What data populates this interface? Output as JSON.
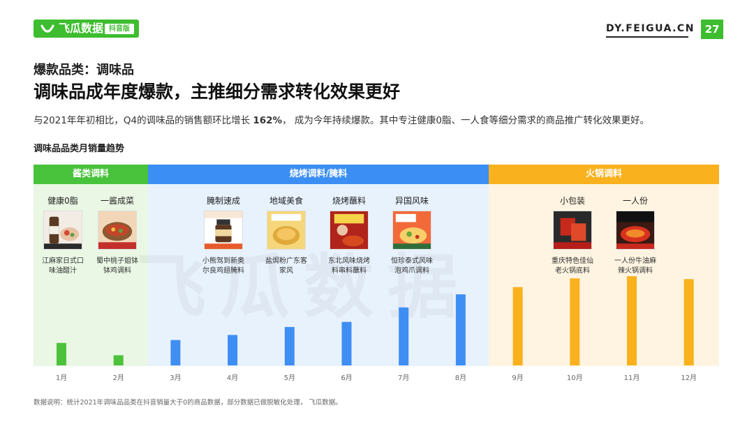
{
  "header": {
    "logo_text": "飞瓜数据",
    "logo_badge": "抖音版",
    "site": "DY.FEIGUA.CN",
    "page_number": "27"
  },
  "section_title": "爆款品类：调味品",
  "headline": "调味品成年度爆款，主推细分需求转化效果更好",
  "description": {
    "pre": "与2021年年初相比，Q4的调味品的销售额环比增长 ",
    "highlight": "162%",
    "post": "， 成为今年持续爆款。其中专注健康0脂、一人食等细分需求的商品推广转化效果更好。"
  },
  "chart_title": "调味品品类月销量趋势",
  "watermark": "飞瓜数据",
  "groups": [
    {
      "label": "酱类调料",
      "color": "#49c23c",
      "bg": "#e9f7e4",
      "bar_color": "#4cc23b"
    },
    {
      "label": "烧烤调料/腌料",
      "color": "#3b8ef3",
      "bg": "#e8f2fd",
      "bar_color": "#3f8ef3"
    },
    {
      "label": "火锅调料",
      "color": "#f9b11e",
      "bg": "#fef4e1",
      "bar_color": "#f9b11e"
    }
  ],
  "products": [
    {
      "subcategory": "健康0脂",
      "name_line1": "江麻家日式口",
      "name_line2": "味油醋汁",
      "image": "bottle-salad-icon"
    },
    {
      "subcategory": "一酱成菜",
      "name_line1": "蜀中桃子姐钵",
      "name_line2": "钵鸡调料",
      "image": "bowl-dish-icon"
    },
    {
      "subcategory": "腌制速成",
      "name_line1": "小熊驾到新奥",
      "name_line2": "尔良鸡翅腌料",
      "image": "jar-icon"
    },
    {
      "subcategory": "地域美食",
      "name_line1": "盐焗粉广东客",
      "name_line2": "家风",
      "image": "chicken-icon"
    },
    {
      "subcategory": "烧烤蘸料",
      "name_line1": "东北风味烧烤",
      "name_line2": "料串料蘸料",
      "image": "spice-powder-icon"
    },
    {
      "subcategory": "异国风味",
      "name_line1": "恒珍泰式风味",
      "name_line2": "泡鸡爪调料",
      "image": "chicken-feet-icon"
    },
    {
      "subcategory": "小包装",
      "name_line1": "重庆特色佳仙",
      "name_line2": "老火锅底料",
      "image": "hotpot-base-icon"
    },
    {
      "subcategory": "一人份",
      "name_line1": "一人份牛油麻",
      "name_line2": "辣火锅调料",
      "image": "hotpot-single-icon"
    }
  ],
  "footnote": "数据说明：统计2021年调味品品类在抖音销量大于0的商品数据，部分数据已做脱敏化处理， 飞瓜数据。",
  "chart_data": {
    "type": "bar",
    "title": "调味品品类月销量趋势",
    "categories": [
      "1月",
      "2月",
      "3月",
      "4月",
      "5月",
      "6月",
      "7月",
      "8月",
      "9月",
      "10月",
      "11月",
      "12月"
    ],
    "values": [
      31,
      14,
      35,
      42,
      53,
      60,
      80,
      98,
      108,
      120,
      123,
      119
    ],
    "group_index": [
      0,
      0,
      1,
      1,
      1,
      1,
      1,
      1,
      2,
      2,
      2,
      2
    ],
    "ylim": [
      0,
      250
    ],
    "grid": false,
    "y_axis_shown": false
  }
}
